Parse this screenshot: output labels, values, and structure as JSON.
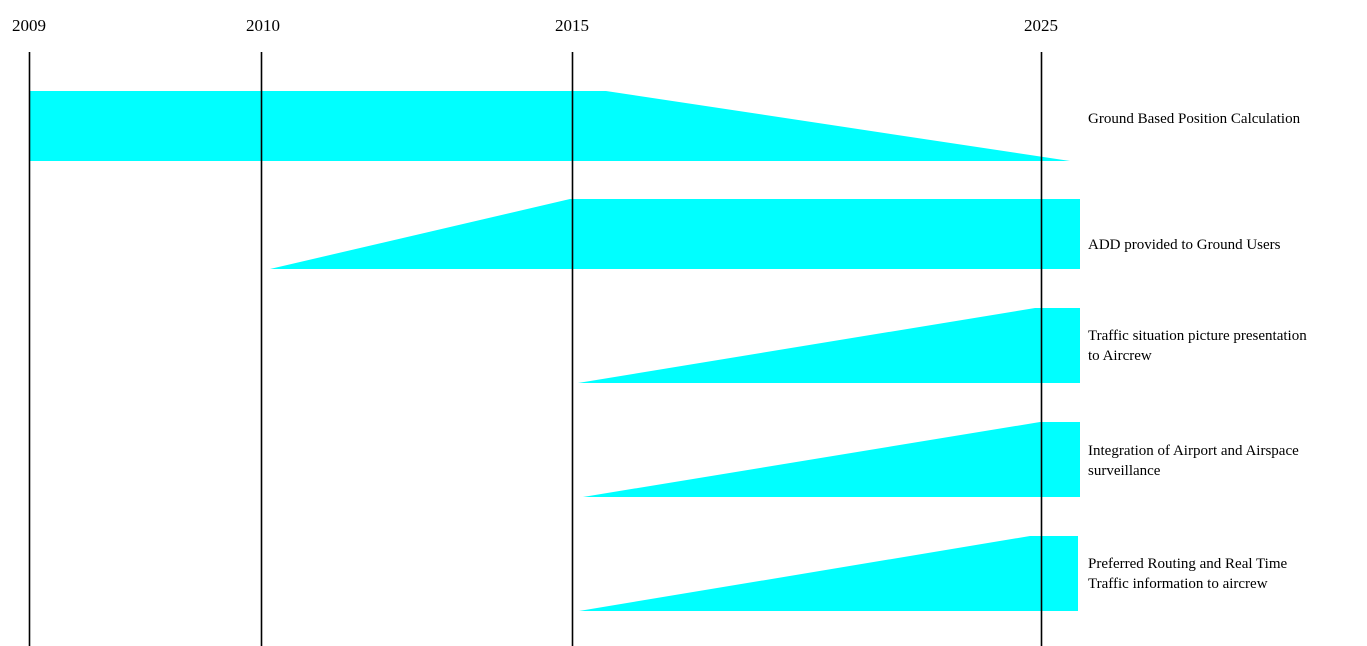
{
  "timeline": {
    "years": [
      "2009",
      "2010",
      "2015",
      "2025"
    ]
  },
  "rows": [
    {
      "lines": [
        "Ground Based Position Calculation"
      ]
    },
    {
      "lines": [
        "ADD provided to Ground Users"
      ]
    },
    {
      "lines": [
        "Traffic situation picture presentation",
        "to Aircrew"
      ]
    },
    {
      "lines": [
        "Integration of Airport and Airspace",
        "surveillance"
      ]
    },
    {
      "lines": [
        "Preferred Routing and Real Time",
        "Traffic information to aircrew"
      ]
    }
  ],
  "colors": {
    "band_fill": "#00ffff",
    "milestone_line": "#000000"
  }
}
